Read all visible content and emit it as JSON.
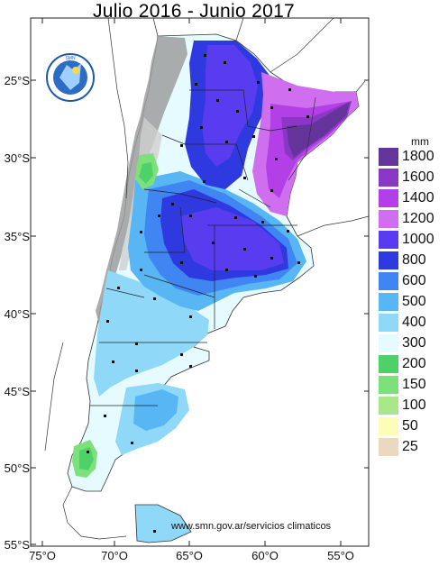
{
  "title": "Julio 2016 - Junio 2017",
  "legend": {
    "unit": "mm",
    "items": [
      {
        "label": "1800",
        "color": "#64349a"
      },
      {
        "label": "1600",
        "color": "#8a37c8"
      },
      {
        "label": "1400",
        "color": "#b240e6"
      },
      {
        "label": "1200",
        "color": "#d06ef0"
      },
      {
        "label": "1000",
        "color": "#5a3cf0"
      },
      {
        "label": "800",
        "color": "#2e3ae0"
      },
      {
        "label": "600",
        "color": "#3f86f2"
      },
      {
        "label": "500",
        "color": "#58b6f4"
      },
      {
        "label": "400",
        "color": "#8fd8f8"
      },
      {
        "label": "300",
        "color": "#e6fbff"
      },
      {
        "label": "200",
        "color": "#4fd16a"
      },
      {
        "label": "150",
        "color": "#7ee07a"
      },
      {
        "label": "100",
        "color": "#a8e889"
      },
      {
        "label": "50",
        "color": "#fdfdb8"
      },
      {
        "label": "25",
        "color": "#ead9bf"
      }
    ]
  },
  "lat_labels": [
    "25°S",
    "30°S",
    "35°S",
    "40°S",
    "45°S",
    "50°S",
    "55°S"
  ],
  "lon_labels": [
    "75°O",
    "70°O",
    "65°O",
    "60°O",
    "55°O"
  ],
  "credit": "www.smn.gov.ar/servicios climaticos",
  "logo_text": "SERVICIO METEOROLÓGICO NACIONAL · ARGENTINA"
}
